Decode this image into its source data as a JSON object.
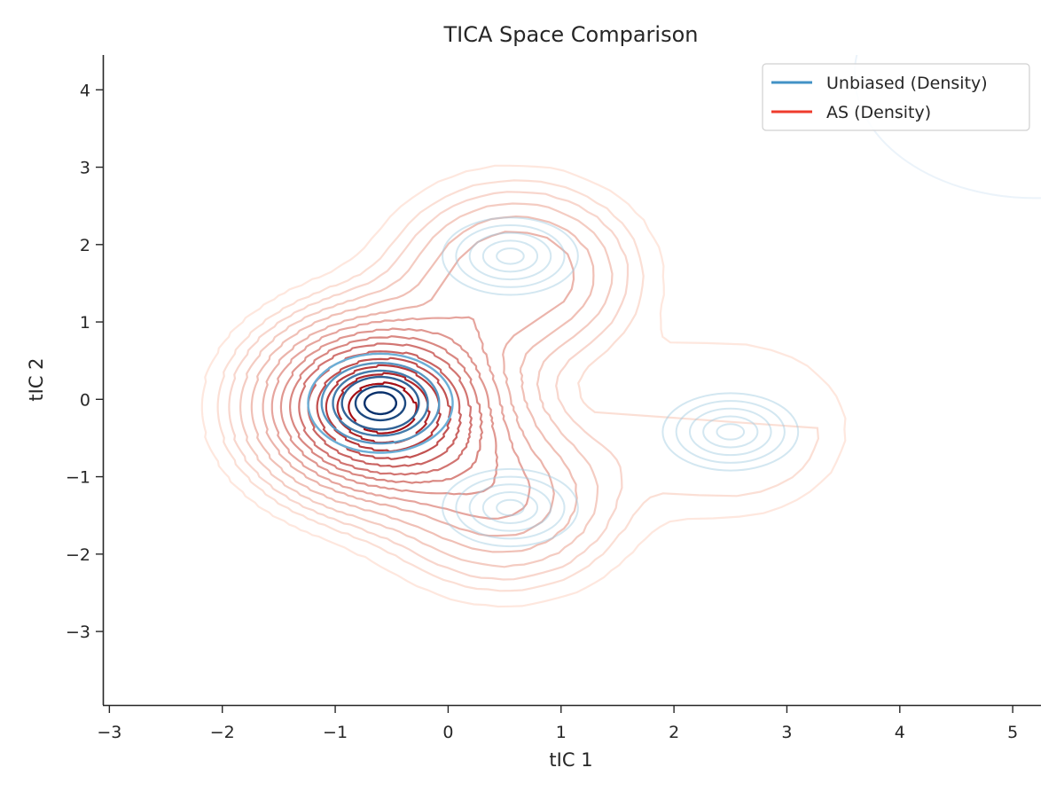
{
  "chart_data": {
    "type": "contour",
    "title": "TICA Space Comparison",
    "xlabel": "tIC 1",
    "ylabel": "tIC 2",
    "xlim": [
      -3.05,
      5.25
    ],
    "ylim": [
      -3.95,
      4.45
    ],
    "xticks": [
      -3,
      -2,
      -1,
      0,
      1,
      2,
      3,
      4,
      5
    ],
    "yticks": [
      -3,
      -2,
      -1,
      0,
      1,
      2,
      3,
      4
    ],
    "xtick_labels": [
      "−3",
      "−2",
      "−1",
      "0",
      "1",
      "2",
      "3",
      "4",
      "5"
    ],
    "ytick_labels": [
      "−3",
      "−2",
      "−1",
      "0",
      "1",
      "2",
      "3",
      "4"
    ],
    "grid": false,
    "legend_position": "top-right",
    "series": [
      {
        "name": "Unbiased (Density)",
        "color": "#4292c6",
        "colormap": "Blues",
        "density_modes": [
          {
            "x": -0.6,
            "y": -0.05,
            "weight": 1.0
          },
          {
            "x": 0.55,
            "y": 1.85,
            "weight": 0.3
          },
          {
            "x": 0.55,
            "y": -1.4,
            "weight": 0.25
          },
          {
            "x": 2.5,
            "y": -0.42,
            "weight": 0.2
          },
          {
            "x": 5.2,
            "y": 4.2,
            "weight": 0.02
          }
        ]
      },
      {
        "name": "AS (Density)",
        "color": "#ef3b2c",
        "colormap": "Reds",
        "density_modes": [
          {
            "x": -0.6,
            "y": -0.1,
            "weight": 1.0
          },
          {
            "x": 0.6,
            "y": 1.6,
            "weight": 0.35
          },
          {
            "x": 0.5,
            "y": -1.3,
            "weight": 0.3
          },
          {
            "x": 2.5,
            "y": -0.4,
            "weight": 0.15
          }
        ]
      }
    ]
  }
}
